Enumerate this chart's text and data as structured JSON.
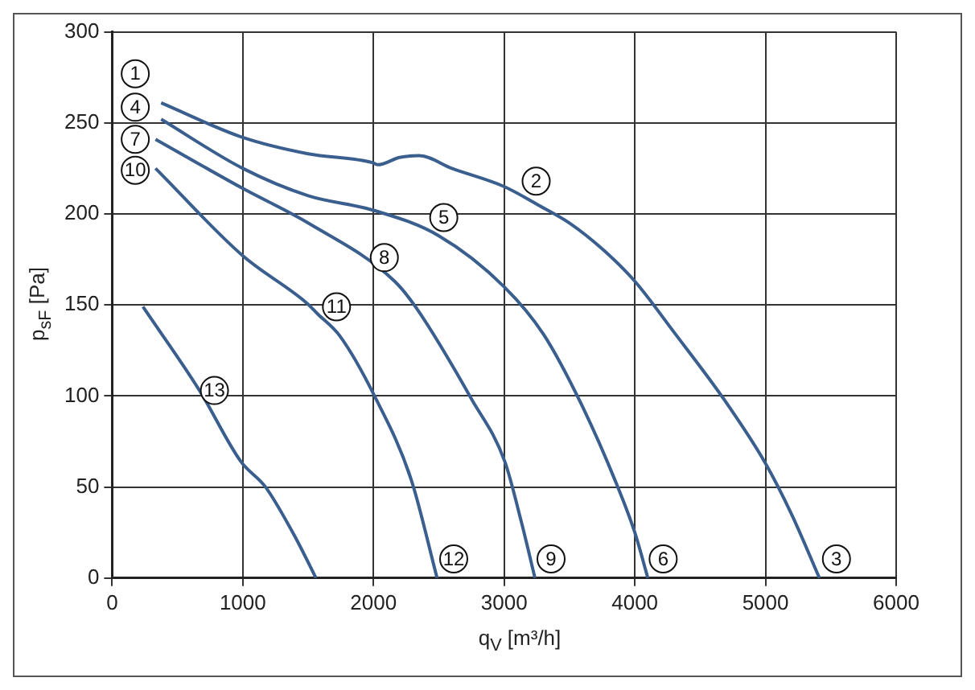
{
  "chart_data": {
    "type": "line",
    "xlabel": "q$_{V}$ [m³/h]",
    "ylabel": "p$_{sF}$ [Pa]",
    "xlim": [
      0,
      6000
    ],
    "xticks": [
      0,
      1000,
      2000,
      3000,
      4000,
      5000,
      6000
    ],
    "ylim": [
      0,
      300
    ],
    "yticks": [
      0,
      50,
      100,
      150,
      200,
      250,
      300
    ],
    "grid": true,
    "legend": false,
    "marker": "none",
    "line_style": "solid",
    "series": [
      {
        "color": "#3a5f8f",
        "x": [
          375,
          1000,
          1500,
          2000,
          2033,
          2200,
          2350,
          2600,
          3000,
          3258,
          3500,
          3763,
          4000,
          4300,
          4684,
          5000,
          5200,
          5413
        ],
        "values": [
          261,
          242,
          233,
          228,
          227,
          231,
          232,
          225,
          215,
          205,
          195,
          180,
          163,
          135,
          98,
          63,
          35,
          0
        ]
      },
      {
        "color": "#3a5f8f",
        "x": [
          375,
          1000,
          1500,
          2000,
          2500,
          3000,
          3300,
          3594,
          3864,
          4000,
          4100
        ],
        "values": [
          252,
          225,
          210,
          202,
          188,
          160,
          134,
          95,
          51,
          25,
          0
        ]
      },
      {
        "color": "#3a5f8f",
        "x": [
          332,
          1000,
          1500,
          2162,
          2331,
          2753,
          3005,
          3131,
          3236
        ],
        "values": [
          241,
          214,
          195,
          163,
          148,
          98,
          64,
          31,
          0
        ]
      },
      {
        "color": "#3a5f8f",
        "x": [
          332,
          1000,
          1490,
          1574,
          1742,
          2008,
          2289,
          2487
        ],
        "values": [
          225,
          177,
          151,
          145,
          133,
          100,
          54,
          0
        ]
      },
      {
        "color": "#3a5f8f",
        "x": [
          236,
          669,
          985,
          1174,
          1405,
          1560
        ],
        "values": [
          149,
          103,
          64,
          50,
          22,
          0
        ]
      }
    ],
    "annotations": [
      {
        "text": "1",
        "x": 177,
        "y": 277
      },
      {
        "text": "4",
        "x": 177,
        "y": 258.6
      },
      {
        "text": "7",
        "x": 177,
        "y": 241
      },
      {
        "text": "10",
        "x": 177,
        "y": 224
      },
      {
        "text": "2",
        "x": 3245,
        "y": 218
      },
      {
        "text": "5",
        "x": 2538,
        "y": 198
      },
      {
        "text": "8",
        "x": 2083,
        "y": 176
      },
      {
        "text": "11",
        "x": 1717,
        "y": 149
      },
      {
        "text": "13",
        "x": 783,
        "y": 103
      },
      {
        "text": "12",
        "x": 2614,
        "y": 10.5
      },
      {
        "text": "9",
        "x": 3359,
        "y": 10.5
      },
      {
        "text": "6",
        "x": 4217,
        "y": 10.5
      },
      {
        "text": "3",
        "x": 5543,
        "y": 10.5
      }
    ]
  }
}
